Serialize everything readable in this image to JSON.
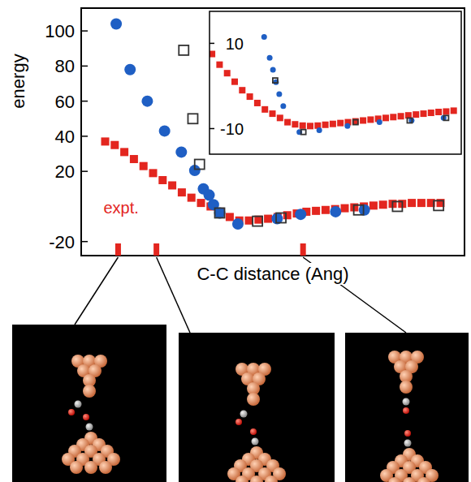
{
  "chart_data": [
    {
      "type": "scatter",
      "y_label": "energy",
      "x_label": "C-C distance (Ang)",
      "xlim": [
        2,
        10
      ],
      "ylim": [
        -28,
        113
      ],
      "yticks": [
        -20,
        20,
        40,
        60,
        80,
        100
      ],
      "tick_labels": "y",
      "highlight_x": [
        2.77,
        3.57,
        6.63
      ],
      "series": [
        {
          "name": "expt.",
          "color": "#e3261f",
          "marker": "square",
          "x": [
            2.5,
            2.7,
            2.9,
            3.1,
            3.3,
            3.5,
            3.7,
            3.9,
            4.1,
            4.3,
            4.5,
            4.7,
            4.9,
            5.1,
            5.3,
            5.5,
            5.7,
            5.9,
            6.1,
            6.3,
            6.5,
            6.7,
            6.9,
            7.1,
            7.3,
            7.5,
            7.7,
            7.9,
            8.1,
            8.3,
            8.5,
            8.7,
            8.9,
            9.1,
            9.3,
            9.5
          ],
          "values": [
            37,
            35,
            31,
            27,
            23,
            19,
            15,
            12,
            8,
            5,
            2,
            0,
            -3,
            -6,
            -8,
            -8,
            -7.5,
            -7,
            -6,
            -5,
            -4,
            -3,
            -2.5,
            -2,
            -1.5,
            -1,
            -0.5,
            0,
            0.5,
            1,
            1.5,
            1.5,
            2,
            2,
            2,
            2
          ]
        },
        {
          "color": "#1f5fc4",
          "marker": "circle",
          "x": [
            2.73,
            3.02,
            3.38,
            3.74,
            4.09,
            4.37,
            4.55,
            4.67,
            4.76,
            4.89,
            5.27,
            6.09,
            6.58,
            7.31,
            7.91
          ],
          "values": [
            104,
            78,
            60,
            43,
            31,
            20.5,
            10,
            6.5,
            1,
            -3.7,
            -10,
            -7,
            -4.5,
            -3,
            -2
          ]
        },
        {
          "color": "#333333",
          "marker": "open_square",
          "x": [
            4.14,
            4.33,
            4.47,
            4.89,
            5.68,
            6.17,
            7.79,
            8.6,
            9.46
          ],
          "values": [
            89,
            50,
            24,
            -3.7,
            -8.4,
            -6.5,
            -2,
            0,
            0.5
          ]
        }
      ]
    },
    {
      "type": "scatter",
      "xlim": [
        0,
        10
      ],
      "ylim": [
        -16,
        17.5
      ],
      "yticks": [
        -10,
        10
      ],
      "tick_labels": "y",
      "series": [
        {
          "color": "#e3261f",
          "marker": "square",
          "x": [
            0.1,
            0.4,
            0.7,
            1.0,
            1.3,
            1.6,
            1.9,
            2.2,
            2.5,
            2.8,
            3.1,
            3.4,
            3.7,
            4.0,
            4.3,
            4.6,
            4.9,
            5.2,
            5.5,
            5.8,
            6.1,
            6.4,
            6.7,
            7.0,
            7.3,
            7.6,
            7.9,
            8.2,
            8.5,
            8.8,
            9.1,
            9.4,
            9.7
          ],
          "values": [
            7.5,
            5,
            3,
            1,
            -1,
            -2.5,
            -4,
            -5.5,
            -6.5,
            -7.5,
            -8.5,
            -9,
            -9.3,
            -9.4,
            -9.3,
            -9.1,
            -8.9,
            -8.7,
            -8.5,
            -8.3,
            -8.1,
            -7.9,
            -7.7,
            -7.5,
            -7.3,
            -7.1,
            -6.9,
            -6.7,
            -6.5,
            -6.3,
            -6.1,
            -6.0,
            -5.8
          ]
        },
        {
          "color": "#1f5fc4",
          "marker": "circle",
          "x": [
            2.17,
            2.39,
            2.52,
            2.64,
            2.77,
            2.93,
            3.57,
            4.36,
            5.48,
            6.75,
            8.03,
            9.3
          ],
          "values": [
            11.5,
            6.6,
            3.8,
            0.9,
            -1.9,
            -4.7,
            -10.8,
            -10.4,
            -9.4,
            -8.5,
            -8.1,
            -7.5
          ]
        },
        {
          "color": "#333333",
          "marker": "open_square",
          "x": [
            2.61,
            3.73,
            5.8,
            7.95,
            9.4
          ],
          "values": [
            1.3,
            -10.8,
            -8.5,
            -8.1,
            -7.5
          ]
        }
      ]
    }
  ]
}
